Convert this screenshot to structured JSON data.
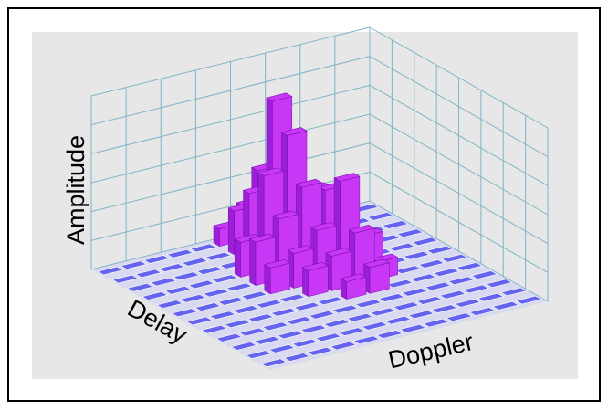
{
  "chart_data": {
    "type": "bar3d",
    "z_label": "Amplitude",
    "y_label": "Delay",
    "x_label": "Doppler",
    "zlim": [
      0,
      100
    ],
    "color": "#c837f5",
    "side_color": "#9a1fd6",
    "floor_color": "#6464ee",
    "values": [
      [
        0,
        0,
        0,
        0,
        0,
        0,
        0,
        0,
        0,
        0,
        0,
        0
      ],
      [
        0,
        0,
        0,
        0,
        0,
        0,
        0,
        0,
        0,
        0,
        0,
        0
      ],
      [
        0,
        0,
        0,
        0,
        0,
        0,
        0,
        0,
        0,
        0,
        0,
        0
      ],
      [
        0,
        0,
        0,
        0,
        0,
        0,
        0,
        0,
        0,
        0,
        0,
        0
      ],
      [
        0,
        0,
        0,
        0,
        0,
        0,
        10,
        15,
        0,
        0,
        0,
        0
      ],
      [
        0,
        0,
        0,
        0,
        0,
        15,
        20,
        30,
        10,
        0,
        0,
        0
      ],
      [
        0,
        0,
        0,
        0,
        15,
        20,
        30,
        55,
        20,
        0,
        0,
        0
      ],
      [
        0,
        0,
        0,
        0,
        25,
        35,
        50,
        45,
        15,
        0,
        0,
        0
      ],
      [
        0,
        0,
        0,
        0,
        20,
        55,
        75,
        40,
        0,
        0,
        0,
        0
      ],
      [
        0,
        0,
        0,
        0,
        0,
        40,
        90,
        35,
        0,
        0,
        0,
        0
      ],
      [
        0,
        0,
        0,
        0,
        0,
        25,
        45,
        15,
        0,
        0,
        0,
        0
      ],
      [
        0,
        0,
        0,
        0,
        0,
        10,
        20,
        0,
        0,
        0,
        0,
        0
      ]
    ]
  }
}
